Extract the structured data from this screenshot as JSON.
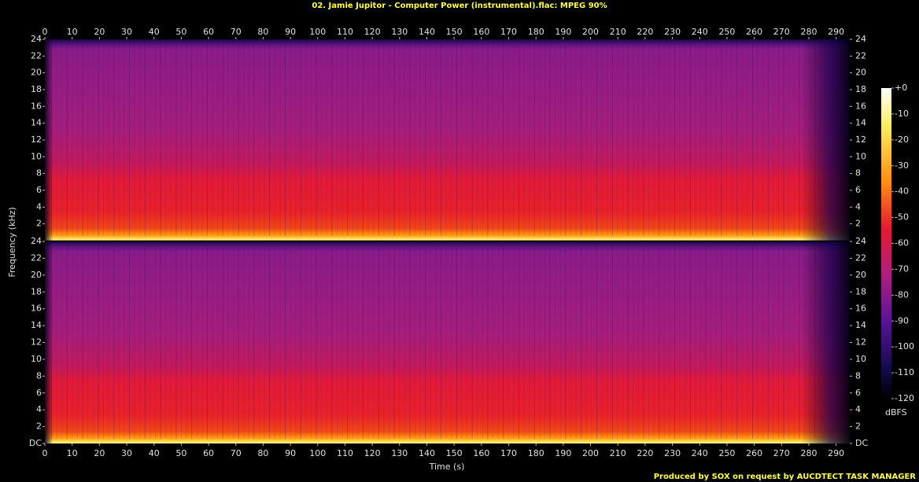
{
  "chart_data": {
    "type": "spectrogram",
    "title": "02. Jamie Jupitor - Computer Power (instrumental).flac: MPEG 90%",
    "footer": "Produced by SOX on request by AUCDTECT TASK MANAGER",
    "xlabel": "Time (s)",
    "ylabel": "Frequency (kHz)",
    "xlim": [
      0,
      295
    ],
    "xticks": [
      0,
      10,
      20,
      30,
      40,
      50,
      60,
      70,
      80,
      90,
      100,
      110,
      120,
      130,
      140,
      150,
      160,
      170,
      180,
      190,
      200,
      210,
      220,
      230,
      240,
      250,
      260,
      270,
      280,
      290
    ],
    "ylim": [
      0,
      24
    ],
    "panels": [
      {
        "yticks": [
          2,
          4,
          6,
          8,
          10,
          12,
          14,
          16,
          18,
          20,
          22,
          24
        ]
      },
      {
        "yticks": [
          {
            "value": 0,
            "label": "DC"
          },
          2,
          4,
          6,
          8,
          10,
          12,
          14,
          16,
          18,
          20,
          22,
          24
        ]
      }
    ],
    "colorbar": {
      "label": "dBFS",
      "lim": [
        -120,
        0
      ],
      "ticks": [
        {
          "value": 0,
          "label": "+0"
        },
        -10,
        -20,
        -30,
        -40,
        -50,
        -60,
        -70,
        -80,
        -90,
        -100,
        -110,
        -120
      ]
    }
  }
}
